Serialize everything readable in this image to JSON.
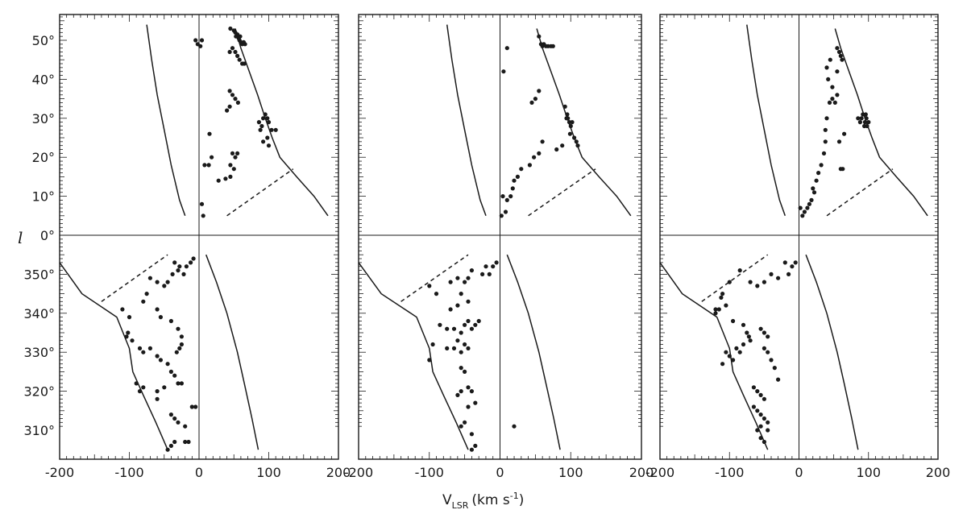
{
  "figure": {
    "y_axis_label": "l",
    "x_axis_label_main": "V",
    "x_axis_label_sub": "LSR",
    "x_axis_label_units": "(km s",
    "x_axis_label_exp": "-1",
    "x_axis_label_close": ")",
    "colors": {
      "ink": "#1a1a1a",
      "background": "#ffffff"
    }
  },
  "chart_data": [
    {
      "type": "scatter",
      "xlabel": "VLSR (km s-1)",
      "ylabel": "l",
      "xlim": [
        -200,
        200
      ],
      "ylim": [
        303,
        56
      ],
      "x_ticks": [
        "-200",
        "-100",
        "0",
        "100",
        "200"
      ],
      "y_ticks": [
        "50°",
        "40°",
        "30°",
        "20°",
        "10°",
        "0°",
        "350°",
        "340°",
        "330°",
        "320°",
        "310°"
      ],
      "points": [
        [
          -5,
          50
        ],
        [
          -2,
          49
        ],
        [
          2,
          48.5
        ],
        [
          4,
          50
        ],
        [
          45,
          53
        ],
        [
          50,
          52.5
        ],
        [
          52,
          52
        ],
        [
          53,
          51
        ],
        [
          55,
          51.5
        ],
        [
          57,
          50.5
        ],
        [
          58,
          50
        ],
        [
          59,
          51
        ],
        [
          60,
          49.5
        ],
        [
          62,
          49
        ],
        [
          64,
          49.5
        ],
        [
          66,
          49
        ],
        [
          48,
          48
        ],
        [
          52,
          47
        ],
        [
          55,
          46
        ],
        [
          44,
          47
        ],
        [
          58,
          45
        ],
        [
          62,
          44
        ],
        [
          65,
          44
        ],
        [
          44,
          37
        ],
        [
          48,
          36
        ],
        [
          52,
          35
        ],
        [
          56,
          34
        ],
        [
          44,
          33
        ],
        [
          40,
          32
        ],
        [
          86,
          29
        ],
        [
          90,
          28
        ],
        [
          88,
          27
        ],
        [
          92,
          30
        ],
        [
          95,
          31
        ],
        [
          98,
          30
        ],
        [
          100,
          29
        ],
        [
          104,
          27
        ],
        [
          110,
          27
        ],
        [
          98,
          25
        ],
        [
          92,
          24
        ],
        [
          100,
          23
        ],
        [
          48,
          21
        ],
        [
          52,
          20
        ],
        [
          55,
          21
        ],
        [
          45,
          18
        ],
        [
          50,
          17
        ],
        [
          45,
          15
        ],
        [
          38,
          14.5
        ],
        [
          28,
          14
        ],
        [
          18,
          20
        ],
        [
          14,
          18
        ],
        [
          8,
          18
        ],
        [
          15,
          26
        ],
        [
          4,
          8
        ],
        [
          6,
          5
        ],
        [
          -8,
          354
        ],
        [
          -12,
          353
        ],
        [
          -18,
          352
        ],
        [
          -22,
          350
        ],
        [
          -28,
          352
        ],
        [
          -30,
          351
        ],
        [
          -35,
          353
        ],
        [
          -38,
          350
        ],
        [
          -45,
          348
        ],
        [
          -50,
          347
        ],
        [
          -60,
          348
        ],
        [
          -70,
          349
        ],
        [
          -80,
          343
        ],
        [
          -75,
          345
        ],
        [
          -100,
          339
        ],
        [
          -102,
          335
        ],
        [
          -104,
          334
        ],
        [
          -96,
          333
        ],
        [
          -110,
          341
        ],
        [
          -60,
          341
        ],
        [
          -55,
          339
        ],
        [
          -40,
          338
        ],
        [
          -30,
          336
        ],
        [
          -25,
          332
        ],
        [
          -32,
          330
        ],
        [
          -85,
          331
        ],
        [
          -80,
          330
        ],
        [
          -70,
          331
        ],
        [
          -60,
          329
        ],
        [
          -55,
          328
        ],
        [
          -45,
          327
        ],
        [
          -40,
          325
        ],
        [
          -35,
          324
        ],
        [
          -25,
          322
        ],
        [
          -50,
          321
        ],
        [
          -60,
          320
        ],
        [
          -80,
          321
        ],
        [
          -85,
          320
        ],
        [
          -90,
          322
        ],
        [
          -60,
          318
        ],
        [
          -10,
          316
        ],
        [
          -5,
          316
        ],
        [
          -40,
          314
        ],
        [
          -35,
          313
        ],
        [
          -30,
          312
        ],
        [
          -20,
          311
        ],
        [
          -15,
          307
        ],
        [
          -20,
          307
        ],
        [
          -35,
          307
        ],
        [
          -40,
          306
        ],
        [
          -45,
          305
        ],
        [
          -25,
          334
        ],
        [
          -28,
          331
        ],
        [
          -30,
          322
        ]
      ]
    },
    {
      "type": "scatter",
      "xlabel": "VLSR (km s-1)",
      "ylabel": "l",
      "xlim": [
        -200,
        200
      ],
      "ylim": [
        303,
        56
      ],
      "x_ticks": [
        "-200",
        "-100",
        "0",
        "100",
        "200"
      ],
      "y_ticks": [
        "50°",
        "40°",
        "30°",
        "20°",
        "10°",
        "0°",
        "350°",
        "340°",
        "330°",
        "320°",
        "310°"
      ],
      "points": [
        [
          55,
          51
        ],
        [
          58,
          49
        ],
        [
          60,
          48.5
        ],
        [
          62,
          49
        ],
        [
          65,
          48.5
        ],
        [
          68,
          48.5
        ],
        [
          72,
          48.5
        ],
        [
          75,
          48.5
        ],
        [
          10,
          48
        ],
        [
          5,
          42
        ],
        [
          55,
          37
        ],
        [
          50,
          35
        ],
        [
          45,
          34
        ],
        [
          92,
          33
        ],
        [
          95,
          31
        ],
        [
          94,
          30
        ],
        [
          96,
          30
        ],
        [
          98,
          29
        ],
        [
          100,
          28
        ],
        [
          102,
          29
        ],
        [
          99,
          26
        ],
        [
          105,
          25
        ],
        [
          108,
          24
        ],
        [
          110,
          23
        ],
        [
          88,
          23
        ],
        [
          80,
          22
        ],
        [
          60,
          24
        ],
        [
          55,
          21
        ],
        [
          48,
          20
        ],
        [
          42,
          18
        ],
        [
          30,
          17
        ],
        [
          25,
          15
        ],
        [
          20,
          14
        ],
        [
          18,
          12
        ],
        [
          15,
          10
        ],
        [
          10,
          9
        ],
        [
          8,
          6
        ],
        [
          4,
          10
        ],
        [
          2,
          5
        ],
        [
          -5,
          353
        ],
        [
          -10,
          352
        ],
        [
          -15,
          350
        ],
        [
          -20,
          352
        ],
        [
          -25,
          350
        ],
        [
          -40,
          351
        ],
        [
          -45,
          349
        ],
        [
          -50,
          348
        ],
        [
          -60,
          349
        ],
        [
          -70,
          348
        ],
        [
          -100,
          347
        ],
        [
          -90,
          345
        ],
        [
          -55,
          345
        ],
        [
          -45,
          343
        ],
        [
          -60,
          342
        ],
        [
          -70,
          341
        ],
        [
          -30,
          338
        ],
        [
          -35,
          337
        ],
        [
          -40,
          336
        ],
        [
          -45,
          338
        ],
        [
          -50,
          337
        ],
        [
          -55,
          335
        ],
        [
          -65,
          336
        ],
        [
          -75,
          336
        ],
        [
          -85,
          337
        ],
        [
          -60,
          333
        ],
        [
          -50,
          332
        ],
        [
          -45,
          331
        ],
        [
          -55,
          330
        ],
        [
          -65,
          331
        ],
        [
          -75,
          331
        ],
        [
          -95,
          332
        ],
        [
          -100,
          328
        ],
        [
          -55,
          326
        ],
        [
          -50,
          325
        ],
        [
          -45,
          321
        ],
        [
          -40,
          320
        ],
        [
          -55,
          320
        ],
        [
          -60,
          319
        ],
        [
          -45,
          316
        ],
        [
          -50,
          312
        ],
        [
          -55,
          311
        ],
        [
          -35,
          317
        ],
        [
          -40,
          309
        ],
        [
          -35,
          306
        ],
        [
          -40,
          305
        ],
        [
          20,
          311
        ]
      ]
    },
    {
      "type": "scatter",
      "xlabel": "VLSR (km s-1)",
      "ylabel": "l",
      "xlim": [
        -200,
        200
      ],
      "ylim": [
        303,
        56
      ],
      "x_ticks": [
        "-200",
        "-100",
        "0",
        "100",
        "200"
      ],
      "y_ticks": [
        "50°",
        "40°",
        "30°",
        "20°",
        "10°",
        "0°",
        "350°",
        "340°",
        "330°",
        "320°",
        "310°"
      ],
      "points": [
        [
          55,
          48
        ],
        [
          58,
          47
        ],
        [
          60,
          46
        ],
        [
          62,
          45
        ],
        [
          45,
          45
        ],
        [
          40,
          43
        ],
        [
          55,
          42
        ],
        [
          42,
          40
        ],
        [
          48,
          38
        ],
        [
          55,
          36
        ],
        [
          48,
          35
        ],
        [
          44,
          34
        ],
        [
          52,
          34
        ],
        [
          40,
          30
        ],
        [
          38,
          27
        ],
        [
          38,
          24
        ],
        [
          36,
          21
        ],
        [
          32,
          18
        ],
        [
          28,
          16
        ],
        [
          25,
          14
        ],
        [
          20,
          12
        ],
        [
          22,
          11
        ],
        [
          18,
          9
        ],
        [
          15,
          8
        ],
        [
          12,
          7
        ],
        [
          8,
          6
        ],
        [
          5,
          5
        ],
        [
          2,
          7
        ],
        [
          85,
          30
        ],
        [
          88,
          29
        ],
        [
          90,
          30
        ],
        [
          92,
          31
        ],
        [
          95,
          29
        ],
        [
          98,
          28
        ],
        [
          100,
          29
        ],
        [
          96,
          31
        ],
        [
          94,
          28
        ],
        [
          97,
          30
        ],
        [
          65,
          26
        ],
        [
          58,
          24
        ],
        [
          60,
          17
        ],
        [
          63,
          17
        ],
        [
          -5,
          353
        ],
        [
          -10,
          352
        ],
        [
          -15,
          350
        ],
        [
          -20,
          353
        ],
        [
          -30,
          349
        ],
        [
          -40,
          350
        ],
        [
          -50,
          348
        ],
        [
          -60,
          347
        ],
        [
          -70,
          348
        ],
        [
          -85,
          351
        ],
        [
          -100,
          348
        ],
        [
          -110,
          345
        ],
        [
          -112,
          344
        ],
        [
          -105,
          342
        ],
        [
          -115,
          341
        ],
        [
          -120,
          341
        ],
        [
          -120,
          340
        ],
        [
          -95,
          338
        ],
        [
          -80,
          337
        ],
        [
          -75,
          335
        ],
        [
          -72,
          334
        ],
        [
          -70,
          333
        ],
        [
          -80,
          332
        ],
        [
          -85,
          330
        ],
        [
          -90,
          331
        ],
        [
          -100,
          329
        ],
        [
          -95,
          328
        ],
        [
          -110,
          327
        ],
        [
          -105,
          330
        ],
        [
          -55,
          336
        ],
        [
          -50,
          335
        ],
        [
          -45,
          334
        ],
        [
          -50,
          331
        ],
        [
          -45,
          330
        ],
        [
          -40,
          328
        ],
        [
          -35,
          326
        ],
        [
          -30,
          323
        ],
        [
          -65,
          321
        ],
        [
          -60,
          320
        ],
        [
          -55,
          319
        ],
        [
          -50,
          318
        ],
        [
          -65,
          316
        ],
        [
          -60,
          315
        ],
        [
          -55,
          314
        ],
        [
          -50,
          313
        ],
        [
          -45,
          312
        ],
        [
          -55,
          311
        ],
        [
          -60,
          310
        ],
        [
          -55,
          308
        ],
        [
          -50,
          307
        ],
        [
          -45,
          310
        ]
      ]
    }
  ]
}
